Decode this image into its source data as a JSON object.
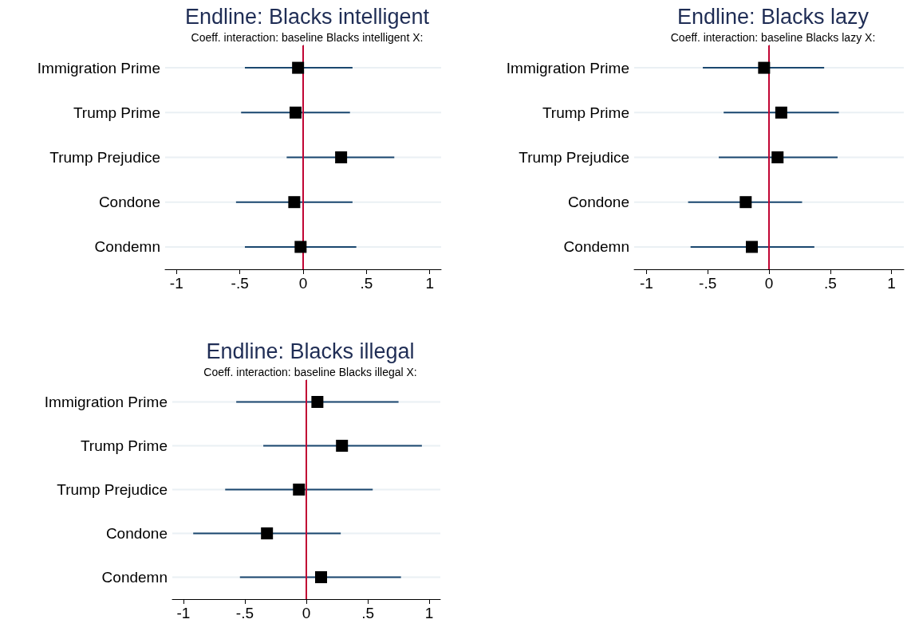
{
  "chart_data": [
    {
      "type": "scatter",
      "orientation": "horizontal",
      "title": "Endline: Blacks intelligent",
      "subtitle": "Coeff. interaction: baseline Blacks intelligent X:",
      "categories": [
        "Immigration Prime",
        "Trump Prime",
        "Trump Prejudice",
        "Condone",
        "Condemn"
      ],
      "series": [
        {
          "color": "#000000",
          "values": [
            -0.04,
            -0.06,
            0.3,
            -0.07,
            -0.02
          ],
          "errors": [
            [
              -0.46,
              0.39
            ],
            [
              -0.49,
              0.37
            ],
            [
              -0.13,
              0.72
            ],
            [
              -0.53,
              0.39
            ],
            [
              -0.46,
              0.42
            ]
          ]
        }
      ],
      "xlim": [
        -1.09,
        1.09
      ],
      "xticks": [
        {
          "value": -1,
          "label": "-1"
        },
        {
          "value": -0.5,
          "label": "-.5"
        },
        {
          "value": 0,
          "label": "0"
        },
        {
          "value": 0.5,
          "label": ".5"
        },
        {
          "value": 1,
          "label": "1"
        }
      ],
      "ref_lines": [
        {
          "axis": "x",
          "value": 0,
          "color": "#c10534"
        }
      ],
      "grid": "y",
      "marker": "square"
    },
    {
      "type": "scatter",
      "orientation": "horizontal",
      "title": "Endline: Blacks lazy",
      "subtitle": "Coeff. interaction: baseline Blacks lazy X:",
      "categories": [
        "Immigration Prime",
        "Trump Prime",
        "Trump Prejudice",
        "Condone",
        "Condemn"
      ],
      "series": [
        {
          "color": "#000000",
          "values": [
            -0.04,
            0.1,
            0.07,
            -0.19,
            -0.14
          ],
          "errors": [
            [
              -0.54,
              0.45
            ],
            [
              -0.37,
              0.57
            ],
            [
              -0.41,
              0.56
            ],
            [
              -0.66,
              0.27
            ],
            [
              -0.64,
              0.37
            ]
          ]
        }
      ],
      "xlim": [
        -1.1,
        1.1
      ],
      "xticks": [
        {
          "value": -1,
          "label": "-1"
        },
        {
          "value": -0.5,
          "label": "-.5"
        },
        {
          "value": 0,
          "label": "0"
        },
        {
          "value": 0.5,
          "label": ".5"
        },
        {
          "value": 1,
          "label": "1"
        }
      ],
      "ref_lines": [
        {
          "axis": "x",
          "value": 0,
          "color": "#c10534"
        }
      ],
      "grid": "y",
      "marker": "square"
    },
    {
      "type": "scatter",
      "orientation": "horizontal",
      "title": "Endline: Blacks illegal",
      "subtitle": "Coeff. interaction: baseline Blacks illegal X:",
      "categories": [
        "Immigration Prime",
        "Trump Prime",
        "Trump Prejudice",
        "Condone",
        "Condemn"
      ],
      "series": [
        {
          "color": "#000000",
          "values": [
            0.09,
            0.29,
            -0.06,
            -0.32,
            0.12
          ],
          "errors": [
            [
              -0.57,
              0.75
            ],
            [
              -0.35,
              0.94
            ],
            [
              -0.66,
              0.54
            ],
            [
              -0.92,
              0.28
            ],
            [
              -0.54,
              0.77
            ]
          ]
        }
      ],
      "xlim": [
        -1.09,
        1.09
      ],
      "xticks": [
        {
          "value": -1,
          "label": "-1"
        },
        {
          "value": -0.5,
          "label": "-.5"
        },
        {
          "value": 0,
          "label": "0"
        },
        {
          "value": 0.5,
          "label": ".5"
        },
        {
          "value": 1,
          "label": "1"
        }
      ],
      "ref_lines": [
        {
          "axis": "x",
          "value": 0,
          "color": "#c10534"
        }
      ],
      "grid": "y",
      "marker": "square"
    }
  ]
}
